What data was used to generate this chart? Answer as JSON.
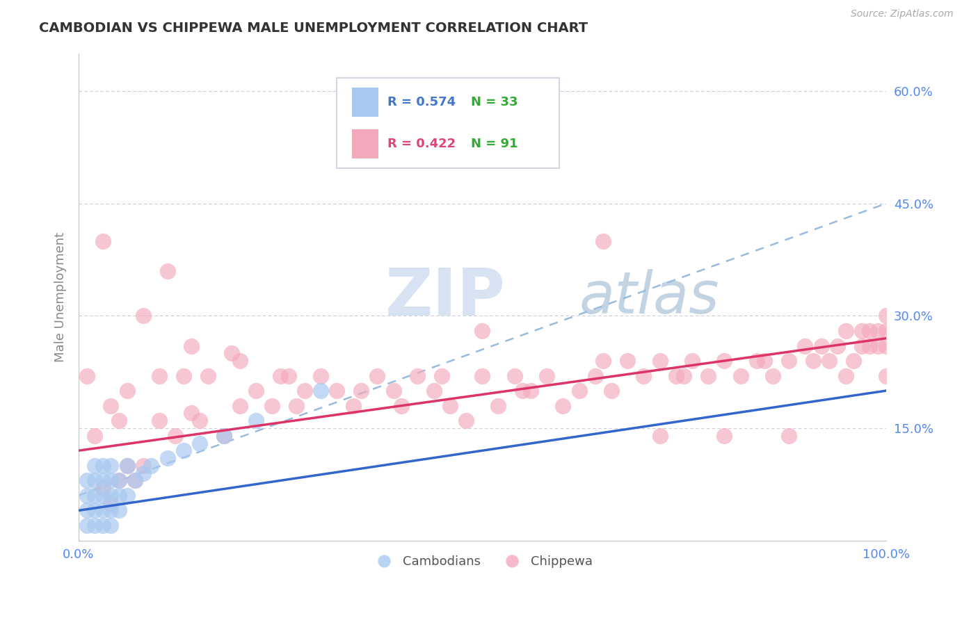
{
  "title": "CAMBODIAN VS CHIPPEWA MALE UNEMPLOYMENT CORRELATION CHART",
  "source": "Source: ZipAtlas.com",
  "ylabel": "Male Unemployment",
  "xmin": 0.0,
  "xmax": 1.0,
  "ymin": 0.0,
  "ymax": 0.65,
  "ytick_positions": [
    0.15,
    0.3,
    0.45,
    0.6
  ],
  "ytick_labels": [
    "15.0%",
    "30.0%",
    "45.0%",
    "60.0%"
  ],
  "cambodian_R": "0.574",
  "cambodian_N": "33",
  "chippewa_R": "0.422",
  "chippewa_N": "91",
  "cambodian_dot_color": "#a8c8f0",
  "chippewa_dot_color": "#f4a8bc",
  "cambodian_line_color": "#3366cc",
  "chippewa_line_color": "#dd3366",
  "dashed_line_color": "#99bbdd",
  "tick_color": "#5588ee",
  "grid_color": "#ccccdd",
  "watermark_zip_color": "#c8d8f0",
  "watermark_atlas_color": "#a8b8d8",
  "legend_r_cam_color": "#4477cc",
  "legend_n_cam_color": "#33aa33",
  "legend_r_chip_color": "#dd4477",
  "legend_n_chip_color": "#33aa33",
  "cam_x": [
    0.01,
    0.01,
    0.01,
    0.01,
    0.02,
    0.02,
    0.02,
    0.02,
    0.02,
    0.03,
    0.03,
    0.03,
    0.03,
    0.03,
    0.04,
    0.04,
    0.04,
    0.04,
    0.04,
    0.05,
    0.05,
    0.05,
    0.06,
    0.06,
    0.07,
    0.08,
    0.09,
    0.11,
    0.13,
    0.15,
    0.18,
    0.22,
    0.3
  ],
  "cam_y": [
    0.02,
    0.04,
    0.06,
    0.08,
    0.02,
    0.04,
    0.06,
    0.08,
    0.1,
    0.02,
    0.04,
    0.06,
    0.08,
    0.1,
    0.02,
    0.04,
    0.06,
    0.08,
    0.1,
    0.04,
    0.06,
    0.08,
    0.06,
    0.1,
    0.08,
    0.09,
    0.1,
    0.11,
    0.12,
    0.13,
    0.14,
    0.16,
    0.2
  ],
  "chip_x": [
    0.01,
    0.02,
    0.03,
    0.04,
    0.04,
    0.05,
    0.05,
    0.06,
    0.07,
    0.08,
    0.1,
    0.11,
    0.12,
    0.13,
    0.14,
    0.15,
    0.16,
    0.18,
    0.19,
    0.2,
    0.22,
    0.24,
    0.26,
    0.27,
    0.28,
    0.3,
    0.32,
    0.34,
    0.37,
    0.39,
    0.4,
    0.42,
    0.44,
    0.46,
    0.48,
    0.5,
    0.52,
    0.54,
    0.56,
    0.58,
    0.6,
    0.62,
    0.64,
    0.66,
    0.68,
    0.7,
    0.72,
    0.74,
    0.76,
    0.78,
    0.8,
    0.82,
    0.84,
    0.86,
    0.88,
    0.9,
    0.91,
    0.92,
    0.93,
    0.94,
    0.95,
    0.96,
    0.97,
    0.97,
    0.98,
    0.98,
    0.99,
    0.99,
    1.0,
    1.0,
    1.0,
    1.0,
    0.03,
    0.06,
    0.08,
    0.1,
    0.14,
    0.2,
    0.25,
    0.35,
    0.45,
    0.55,
    0.65,
    0.75,
    0.85,
    0.65,
    0.72,
    0.8,
    0.88,
    0.95,
    0.5
  ],
  "chip_y": [
    0.22,
    0.14,
    0.07,
    0.05,
    0.18,
    0.08,
    0.16,
    0.1,
    0.08,
    0.1,
    0.16,
    0.36,
    0.14,
    0.22,
    0.17,
    0.16,
    0.22,
    0.14,
    0.25,
    0.18,
    0.2,
    0.18,
    0.22,
    0.18,
    0.2,
    0.22,
    0.2,
    0.18,
    0.22,
    0.2,
    0.18,
    0.22,
    0.2,
    0.18,
    0.16,
    0.22,
    0.18,
    0.22,
    0.2,
    0.22,
    0.18,
    0.2,
    0.22,
    0.2,
    0.24,
    0.22,
    0.24,
    0.22,
    0.24,
    0.22,
    0.24,
    0.22,
    0.24,
    0.22,
    0.24,
    0.26,
    0.24,
    0.26,
    0.24,
    0.26,
    0.22,
    0.24,
    0.28,
    0.26,
    0.28,
    0.26,
    0.28,
    0.26,
    0.28,
    0.22,
    0.26,
    0.3,
    0.4,
    0.2,
    0.3,
    0.22,
    0.26,
    0.24,
    0.22,
    0.2,
    0.22,
    0.2,
    0.24,
    0.22,
    0.24,
    0.4,
    0.14,
    0.14,
    0.14,
    0.28,
    0.28
  ],
  "cam_trend_start_y": 0.04,
  "cam_trend_end_y": 0.2,
  "chip_trend_start_y": 0.12,
  "chip_trend_end_y": 0.27,
  "dash_trend_start_y": 0.06,
  "dash_trend_end_y": 0.45
}
